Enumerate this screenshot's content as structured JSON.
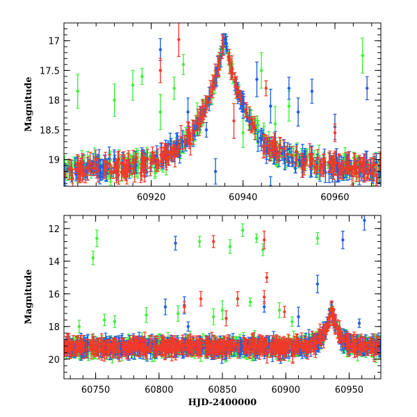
{
  "colors": {
    "green": "#3ef03a",
    "blue": "#1f5fe0",
    "red": "#f03a2a"
  },
  "chart_data": [
    {
      "type": "scatter",
      "panel": "top",
      "title": "",
      "xlabel": "",
      "ylabel": "Magnitude",
      "xlim": [
        60901,
        60970
      ],
      "ylim": [
        19.45,
        16.7
      ],
      "x_ticks": [
        60920,
        60940,
        60960
      ],
      "x_tick_labels": [
        "60920",
        "60940",
        "60960"
      ],
      "y_ticks": [
        17,
        17.5,
        18,
        18.5,
        19
      ],
      "y_tick_labels": [
        "17",
        "17.5",
        "18",
        "18.5",
        "19"
      ],
      "baseline_mag": 19.15,
      "peak": {
        "x": 60936,
        "mag": 16.95
      },
      "series": [
        {
          "name": "green",
          "color": "#3ef03a",
          "outliers": [
            [
              60904,
              17.85
            ],
            [
              60912,
              18.0
            ],
            [
              60916,
              17.75
            ],
            [
              60918,
              17.6
            ],
            [
              60922,
              18.2
            ],
            [
              60925,
              17.8
            ],
            [
              60927,
              17.4
            ],
            [
              60944,
              17.5
            ],
            [
              60947,
              18.4
            ],
            [
              60950,
              18.1
            ],
            [
              60966,
              17.25
            ],
            [
              60930,
              18.3
            ],
            [
              60940,
              18.55
            ]
          ]
        },
        {
          "name": "blue",
          "color": "#1f5fe0",
          "outliers": [
            [
              60922,
              17.15
            ],
            [
              60928,
              18.2
            ],
            [
              60932,
              18.5
            ],
            [
              60943,
              17.65
            ],
            [
              60946,
              18.1
            ],
            [
              60950,
              17.8
            ],
            [
              60952,
              18.2
            ],
            [
              60955,
              17.85
            ],
            [
              60960,
              18.45
            ],
            [
              60967,
              17.8
            ],
            [
              60934,
              19.2
            ],
            [
              60946,
              19.45
            ]
          ]
        },
        {
          "name": "red",
          "color": "#f03a2a",
          "outliers": [
            [
              60922,
              17.5
            ],
            [
              60926,
              16.98
            ],
            [
              60945,
              17.8
            ],
            [
              60948,
              18.75
            ],
            [
              60960,
              18.55
            ],
            [
              60938,
              18.35
            ],
            [
              60928,
              18.55
            ]
          ]
        }
      ]
    },
    {
      "type": "scatter",
      "panel": "bottom",
      "title": "",
      "xlabel": "HJD-2400000",
      "ylabel": "Magnitude",
      "xlim": [
        60725,
        60975
      ],
      "ylim": [
        21.2,
        11.2
      ],
      "x_ticks": [
        60750,
        60800,
        60850,
        60900,
        60950
      ],
      "x_tick_labels": [
        "60750",
        "60800",
        "60850",
        "60900",
        "60950"
      ],
      "y_ticks": [
        12,
        14,
        16,
        18,
        20
      ],
      "y_tick_labels": [
        "12",
        "14",
        "16",
        "18",
        "20"
      ],
      "baseline_mag": 19.25,
      "peak": {
        "x": 60936,
        "mag": 16.9
      },
      "series": [
        {
          "name": "green",
          "color": "#3ef03a",
          "outliers": [
            [
              60748,
              13.8
            ],
            [
              60751,
              12.6
            ],
            [
              60832,
              12.8
            ],
            [
              60856,
              13.1
            ],
            [
              60866,
              12.1
            ],
            [
              60877,
              12.6
            ],
            [
              60882,
              13.3
            ],
            [
              60925,
              12.6
            ],
            [
              60757,
              17.6
            ],
            [
              60790,
              17.3
            ],
            [
              60815,
              17.2
            ],
            [
              60843,
              17.4
            ],
            [
              60872,
              16.5
            ],
            [
              60895,
              17.0
            ],
            [
              60905,
              17.7
            ],
            [
              60737,
              18.0
            ],
            [
              60765,
              17.7
            ],
            [
              60850,
              17.0
            ]
          ]
        },
        {
          "name": "blue",
          "color": "#1f5fe0",
          "outliers": [
            [
              60813,
              12.9
            ],
            [
              60945,
              12.7
            ],
            [
              60962,
              11.5
            ],
            [
              60925,
              15.4
            ],
            [
              60805,
              16.8
            ],
            [
              60823,
              18.0
            ],
            [
              60883,
              16.8
            ],
            [
              60910,
              17.4
            ],
            [
              60958,
              17.8
            ],
            [
              60820,
              16.7
            ]
          ]
        },
        {
          "name": "red",
          "color": "#f03a2a",
          "outliers": [
            [
              60843,
              12.8
            ],
            [
              60883,
              12.7
            ],
            [
              60885,
              15.0
            ],
            [
              60833,
              16.3
            ],
            [
              60862,
              16.3
            ],
            [
              60883,
              16.2
            ],
            [
              60820,
              16.8
            ],
            [
              60853,
              17.5
            ],
            [
              60899,
              17.1
            ],
            [
              60927,
              18.3
            ]
          ]
        }
      ]
    }
  ]
}
